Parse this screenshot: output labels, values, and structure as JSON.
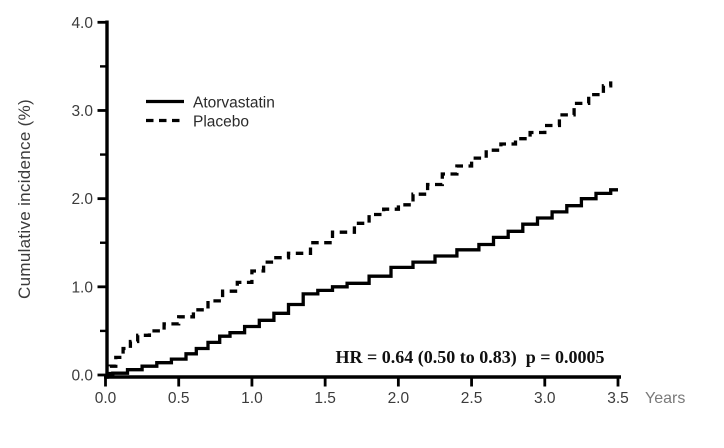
{
  "figure": {
    "background": "#ffffff",
    "axis_color": "#000000",
    "curve_color": "#000000",
    "tick_label_color": "#3b3b3b",
    "years_label_color": "#7a7a7a"
  },
  "chart_data": {
    "type": "line",
    "subtype": "step-kaplan-meier",
    "title": "",
    "xlabel": "Years",
    "ylabel": "Cumulative incidence (%)",
    "xlim": [
      0,
      3.5
    ],
    "ylim": [
      0,
      4.0
    ],
    "grid": false,
    "x_ticks": [
      0.0,
      0.5,
      1.0,
      1.5,
      2.0,
      2.5,
      3.0,
      3.5
    ],
    "x_tick_labels": [
      "0.0",
      "0.5",
      "1.0",
      "1.5",
      "2.0",
      "2.5",
      "3.0",
      "3.5"
    ],
    "y_ticks": [
      0.0,
      1.0,
      2.0,
      3.0,
      4.0
    ],
    "y_tick_labels": [
      "0.0",
      "1.0",
      "2.0",
      "3.0",
      "4.0"
    ],
    "y_minor_ticks": [
      0.5,
      1.5,
      2.5,
      3.5
    ],
    "legend": {
      "position": "upper-left-inside",
      "entries": [
        {
          "label": "Atorvastatin",
          "line": "solid"
        },
        {
          "label": "Placebo",
          "line": "dashed"
        }
      ]
    },
    "annotation": {
      "text": "HR = 0.64 (0.50 to 0.83)  p = 0.0005",
      "x_years": 2.49,
      "y_percent": 0.25
    },
    "series": [
      {
        "name": "Atorvastatin",
        "style": "solid",
        "color": "#000000",
        "x": [
          0.0,
          0.05,
          0.15,
          0.25,
          0.35,
          0.45,
          0.55,
          0.62,
          0.7,
          0.78,
          0.85,
          0.95,
          1.05,
          1.15,
          1.25,
          1.35,
          1.45,
          1.55,
          1.65,
          1.8,
          1.95,
          2.1,
          2.25,
          2.4,
          2.55,
          2.65,
          2.75,
          2.85,
          2.95,
          3.05,
          3.15,
          3.25,
          3.35,
          3.45,
          3.5
        ],
        "y": [
          0.0,
          0.02,
          0.06,
          0.1,
          0.14,
          0.18,
          0.24,
          0.3,
          0.37,
          0.44,
          0.48,
          0.55,
          0.62,
          0.7,
          0.8,
          0.92,
          0.96,
          1.0,
          1.04,
          1.12,
          1.22,
          1.28,
          1.35,
          1.42,
          1.48,
          1.56,
          1.63,
          1.71,
          1.78,
          1.85,
          1.92,
          2.0,
          2.06,
          2.1,
          2.1
        ]
      },
      {
        "name": "Placebo",
        "style": "dashed",
        "color": "#000000",
        "x": [
          0.0,
          0.03,
          0.07,
          0.12,
          0.17,
          0.22,
          0.3,
          0.4,
          0.5,
          0.6,
          0.7,
          0.8,
          0.9,
          1.0,
          1.08,
          1.15,
          1.25,
          1.4,
          1.55,
          1.7,
          1.8,
          1.9,
          2.0,
          2.1,
          2.2,
          2.3,
          2.4,
          2.5,
          2.6,
          2.7,
          2.8,
          2.9,
          3.0,
          3.1,
          3.2,
          3.3,
          3.4,
          3.45
        ],
        "y": [
          0.0,
          0.1,
          0.2,
          0.3,
          0.38,
          0.45,
          0.5,
          0.58,
          0.66,
          0.74,
          0.84,
          0.95,
          1.05,
          1.18,
          1.28,
          1.33,
          1.38,
          1.5,
          1.62,
          1.72,
          1.82,
          1.88,
          1.93,
          2.05,
          2.16,
          2.28,
          2.37,
          2.46,
          2.55,
          2.62,
          2.68,
          2.75,
          2.83,
          2.95,
          3.08,
          3.18,
          3.28,
          3.33
        ]
      }
    ]
  }
}
